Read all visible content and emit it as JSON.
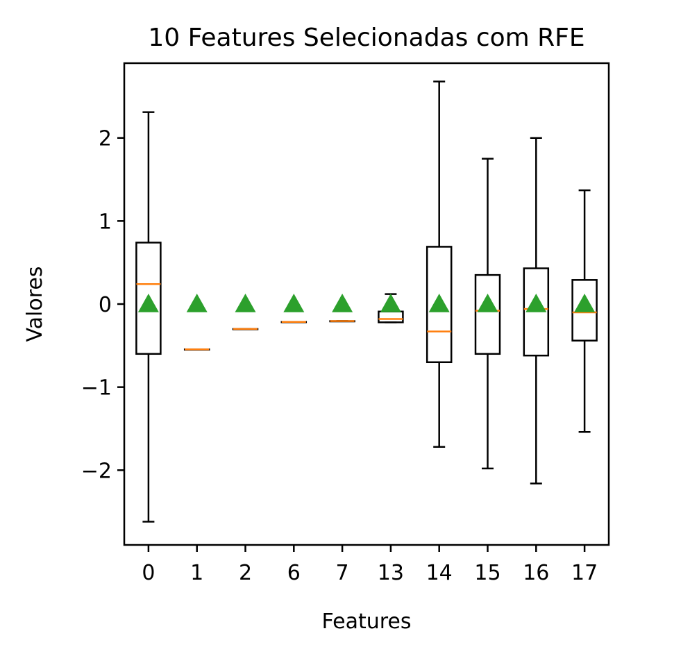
{
  "chart_data": {
    "type": "boxplot",
    "title": "10 Features Selecionadas com RFE",
    "xlabel": "Features",
    "ylabel": "Valores",
    "categories": [
      "0",
      "1",
      "2",
      "6",
      "7",
      "13",
      "14",
      "15",
      "16",
      "17"
    ],
    "ylim": [
      -2.9,
      2.9
    ],
    "yticks": [
      -2,
      -1,
      0,
      1,
      2
    ],
    "ytick_labels": [
      "−2",
      "−1",
      "0",
      "1",
      "2"
    ],
    "grid": false,
    "show_means": true,
    "boxes": [
      {
        "label": "0",
        "whislo": -2.62,
        "q1": -0.6,
        "med": 0.24,
        "q3": 0.74,
        "whishi": 2.31,
        "mean": 0.0
      },
      {
        "label": "1",
        "whislo": -0.545,
        "q1": -0.545,
        "med": -0.545,
        "q3": -0.545,
        "whishi": -0.545,
        "mean": 0.0
      },
      {
        "label": "2",
        "whislo": -0.3,
        "q1": -0.3,
        "med": -0.3,
        "q3": -0.3,
        "whishi": -0.3,
        "mean": 0.0
      },
      {
        "label": "6",
        "whislo": -0.215,
        "q1": -0.215,
        "med": -0.215,
        "q3": -0.215,
        "whishi": -0.215,
        "mean": 0.0
      },
      {
        "label": "7",
        "whislo": -0.205,
        "q1": -0.205,
        "med": -0.205,
        "q3": -0.205,
        "whishi": -0.205,
        "mean": 0.0
      },
      {
        "label": "13",
        "whislo": -0.22,
        "q1": -0.22,
        "med": -0.18,
        "q3": -0.09,
        "whishi": 0.12,
        "mean": 0.0
      },
      {
        "label": "14",
        "whislo": -1.72,
        "q1": -0.7,
        "med": -0.33,
        "q3": 0.69,
        "whishi": 2.68,
        "mean": 0.0
      },
      {
        "label": "15",
        "whislo": -1.98,
        "q1": -0.6,
        "med": -0.08,
        "q3": 0.35,
        "whishi": 1.75,
        "mean": 0.0
      },
      {
        "label": "16",
        "whislo": -2.16,
        "q1": -0.62,
        "med": -0.06,
        "q3": 0.43,
        "whishi": 2.0,
        "mean": 0.0
      },
      {
        "label": "17",
        "whislo": -1.54,
        "q1": -0.44,
        "med": -0.1,
        "q3": 0.29,
        "whishi": 1.37,
        "mean": 0.0
      }
    ],
    "colors": {
      "box": "#000000",
      "median": "#ff7f0e",
      "mean": "#2ca02c"
    }
  }
}
